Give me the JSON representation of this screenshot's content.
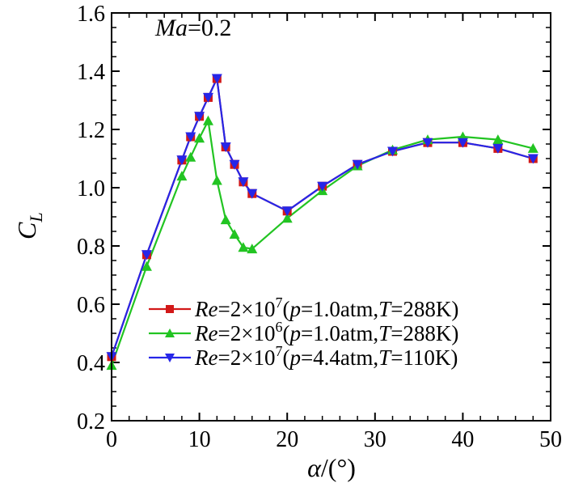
{
  "chart_data": {
    "type": "line",
    "title": "",
    "annotation": {
      "italic": "Ma",
      "plain": "=0.2"
    },
    "xlabel": {
      "italic": "α",
      "plain": "/(°)"
    },
    "ylabel": {
      "main": "C",
      "sub": "L"
    },
    "xlim": [
      0,
      50
    ],
    "ylim": [
      0.2,
      1.6
    ],
    "xticks": [
      "0",
      "10",
      "20",
      "30",
      "40",
      "50"
    ],
    "yticks": [
      "0.2",
      "0.4",
      "0.6",
      "0.8",
      "1.0",
      "1.2",
      "1.4",
      "1.6"
    ],
    "grid": false,
    "legend_position": "bottom-right",
    "series": [
      {
        "name": "Re=2×10^7(p=1.0atm,T=288K)",
        "legend": {
          "re": "Re",
          "eq1": "=2×10",
          "exp": "7",
          "open": "(",
          "p": "p",
          "eq2": "=1.0atm,",
          "t": "T",
          "eq3": "=288K)"
        },
        "color": "#d21818",
        "marker": "square",
        "x": [
          0,
          4,
          8,
          9,
          10,
          11,
          12,
          13,
          14,
          15,
          16,
          20,
          24,
          28,
          32,
          36,
          40,
          44,
          48
        ],
        "y": [
          0.42,
          0.77,
          1.095,
          1.175,
          1.245,
          1.31,
          1.375,
          1.14,
          1.08,
          1.02,
          0.98,
          0.92,
          1.005,
          1.08,
          1.125,
          1.155,
          1.155,
          1.135,
          1.1
        ]
      },
      {
        "name": "Re=2×10^6(p=1.0atm,T=288K)",
        "legend": {
          "re": "Re",
          "eq1": "=2×10",
          "exp": "6",
          "open": "(",
          "p": "p",
          "eq2": "=1.0atm,",
          "t": "T",
          "eq3": "=288K)"
        },
        "color": "#22c422",
        "marker": "triangle-up",
        "x": [
          0,
          4,
          8,
          9,
          10,
          11,
          12,
          13,
          14,
          15,
          16,
          20,
          24,
          28,
          32,
          36,
          40,
          44,
          48
        ],
        "y": [
          0.39,
          0.73,
          1.04,
          1.105,
          1.17,
          1.23,
          1.025,
          0.89,
          0.84,
          0.795,
          0.79,
          0.895,
          0.99,
          1.075,
          1.13,
          1.165,
          1.175,
          1.165,
          1.135
        ]
      },
      {
        "name": "Re=2×10^7(p=4.4atm,T=110K)",
        "legend": {
          "re": "Re",
          "eq1": "=2×10",
          "exp": "7",
          "open": "(",
          "p": "p",
          "eq2": "=4.4atm,",
          "t": "T",
          "eq3": "=110K)"
        },
        "color": "#2626e8",
        "marker": "triangle-down",
        "x": [
          0,
          4,
          8,
          9,
          10,
          11,
          12,
          13,
          14,
          15,
          16,
          20,
          24,
          28,
          32,
          36,
          40,
          44,
          48
        ],
        "y": [
          0.42,
          0.77,
          1.095,
          1.175,
          1.245,
          1.31,
          1.375,
          1.14,
          1.08,
          1.02,
          0.98,
          0.92,
          1.005,
          1.08,
          1.125,
          1.155,
          1.155,
          1.135,
          1.1
        ]
      }
    ]
  }
}
